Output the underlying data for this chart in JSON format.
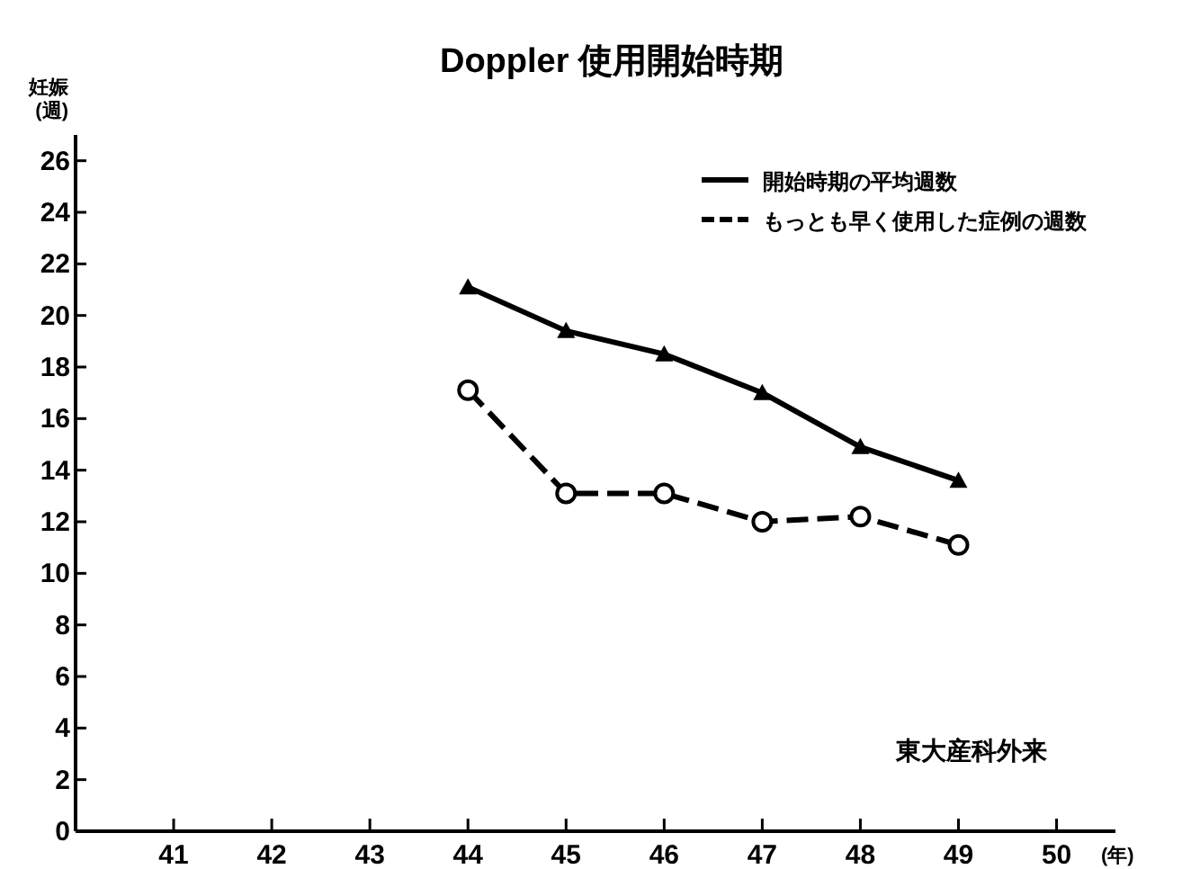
{
  "chart_data": {
    "type": "line",
    "title": "Doppler 使用開始時期",
    "ylabel": "妊娠 (週)",
    "xlabel": "(年)",
    "x": [
      44,
      45,
      46,
      47,
      48,
      49
    ],
    "series": [
      {
        "name": "開始時期の平均週数",
        "color": "#000000",
        "marker": "triangle",
        "line_style": "solid",
        "values": [
          21.1,
          19.4,
          18.5,
          17.0,
          14.9,
          13.6
        ]
      },
      {
        "name": "もっとも早く使用した症例の週数",
        "color": "#000000",
        "marker": "circle",
        "line_style": "dashed",
        "values": [
          17.1,
          13.1,
          13.1,
          12.0,
          12.2,
          11.1
        ]
      }
    ],
    "xlim": [
      40,
      50.6
    ],
    "ylim": [
      0,
      27
    ],
    "xticks": [
      41,
      42,
      43,
      44,
      45,
      46,
      47,
      48,
      49,
      50
    ],
    "yticks": [
      0,
      2,
      4,
      6,
      8,
      10,
      12,
      14,
      16,
      18,
      20,
      22,
      24,
      26
    ],
    "legend": "top right",
    "annotations": [
      "東大産科外来"
    ]
  }
}
